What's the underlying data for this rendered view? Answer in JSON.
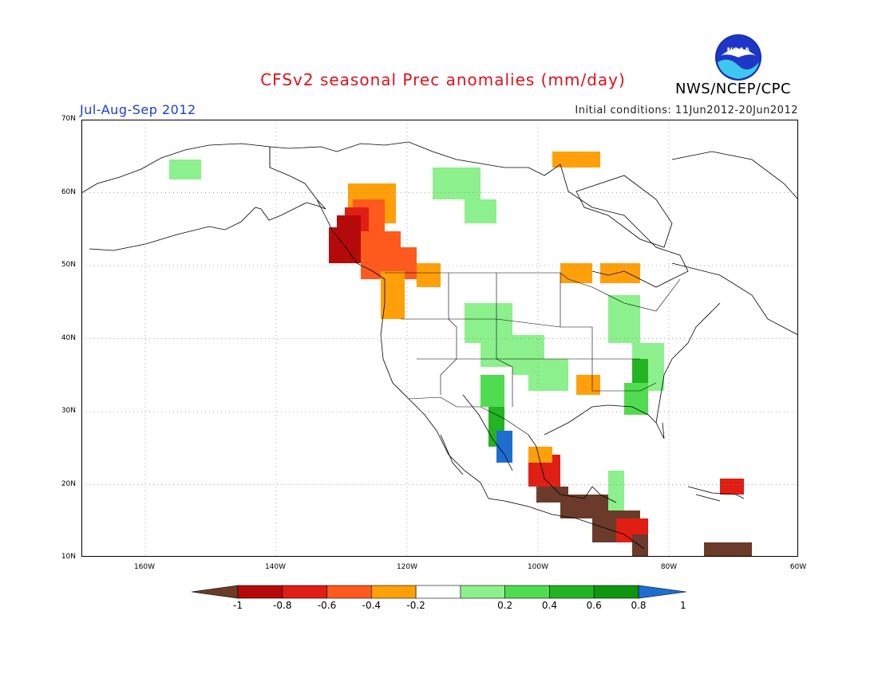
{
  "title": "CFSv2 seasonal Prec anomalies (mm/day)",
  "organization": "NWS/NCEP/CPC",
  "logo_text": "NOAA",
  "season": "Jul-Aug-Sep 2012",
  "initial_conditions": "Initial conditions: 11Jun2012-20Jun2012",
  "lat_labels": [
    "70N",
    "60N",
    "50N",
    "40N",
    "30N",
    "20N",
    "10N"
  ],
  "lon_labels": [
    "160W",
    "140W",
    "120W",
    "100W",
    "80W",
    "60W"
  ],
  "colorbar": {
    "labels": [
      "-1",
      "-0.8",
      "-0.6",
      "-0.4",
      "-0.2",
      "0.2",
      "0.4",
      "0.6",
      "0.8",
      "1"
    ],
    "colors": [
      "#6b3a2a",
      "#b40a0a",
      "#e01e14",
      "#ff5a1e",
      "#ffa00a",
      "#ffffff",
      "#8cf08c",
      "#50dc50",
      "#23b423",
      "#0f960f",
      "#1e6ed2"
    ]
  }
}
